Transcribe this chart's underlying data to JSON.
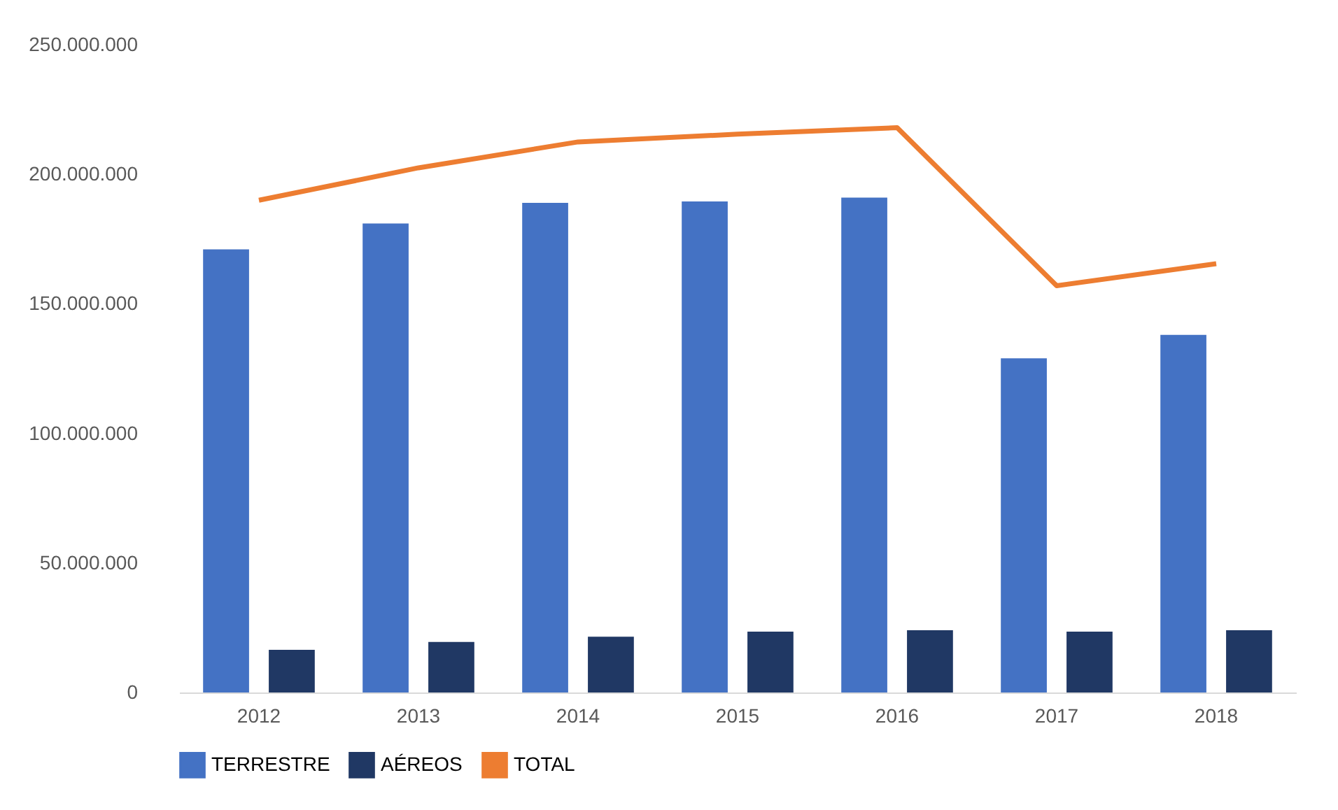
{
  "chart_data": {
    "type": "bar",
    "categories": [
      "2012",
      "2013",
      "2014",
      "2015",
      "2016",
      "2017",
      "2018"
    ],
    "series": [
      {
        "name": "TERRESTRE",
        "color": "#4472c4",
        "values": [
          171000000,
          181000000,
          189000000,
          189500000,
          191000000,
          129000000,
          138000000
        ]
      },
      {
        "name": "AÉREOS",
        "color": "#203864",
        "values": [
          16500000,
          19500000,
          21500000,
          23500000,
          24000000,
          23500000,
          24000000
        ]
      },
      {
        "name": "TOTAL",
        "type": "line",
        "color": "#ed7d31",
        "values": [
          190000000,
          202500000,
          212500000,
          215500000,
          218000000,
          157000000,
          165500000
        ]
      }
    ],
    "ylim": [
      0,
      250000000
    ],
    "yticks": [
      {
        "value": 0,
        "label": "0"
      },
      {
        "value": 50000000,
        "label": "50.000.000"
      },
      {
        "value": 100000000,
        "label": "100.000.000"
      },
      {
        "value": 150000000,
        "label": "150.000.000"
      },
      {
        "value": 200000000,
        "label": "200.000.000"
      },
      {
        "value": 250000000,
        "label": "250.000.000"
      }
    ],
    "legend": "bottom",
    "grid": false,
    "line_style": "solid",
    "marker": "none"
  }
}
